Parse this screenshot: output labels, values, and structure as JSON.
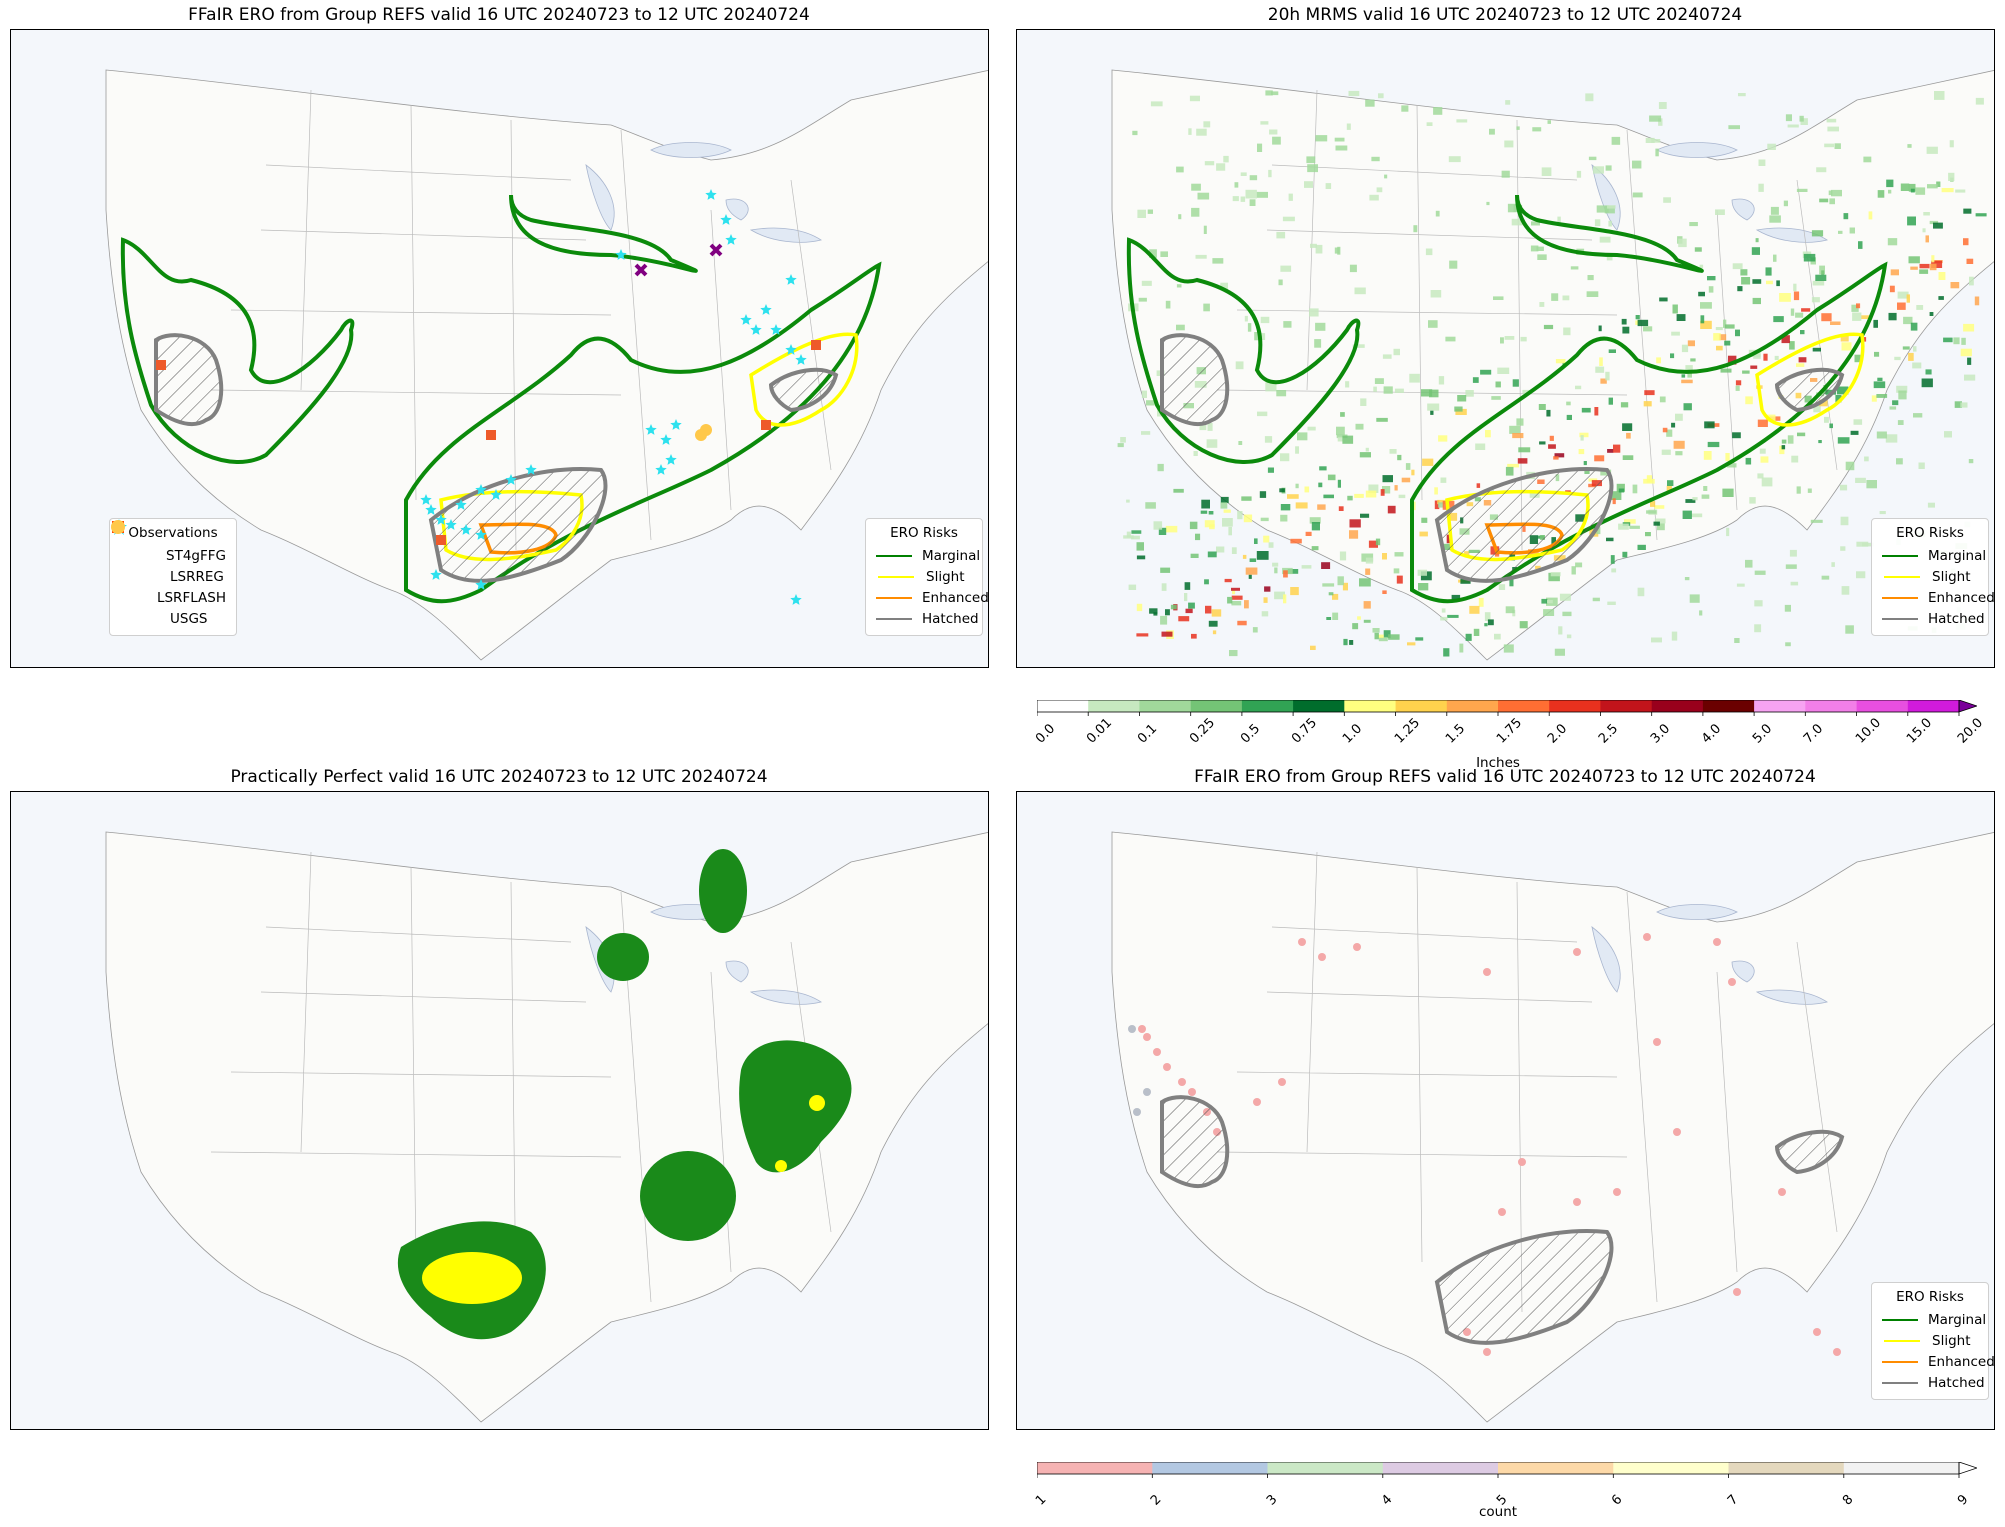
{
  "panels": [
    {
      "id": "p1",
      "title": "FFaIR ERO from Group REFS valid 16 UTC 20240723 to 12 UTC 20240724"
    },
    {
      "id": "p2",
      "title": "20h MRMS valid 16 UTC 20240723 to 12 UTC 20240724"
    },
    {
      "id": "p3",
      "title": "Practically Perfect valid 16 UTC 20240723 to 12 UTC 20240724"
    },
    {
      "id": "p4",
      "title": "FFaIR ERO from Group REFS valid 16 UTC 20240723 to 12 UTC 20240724"
    }
  ],
  "ero_legend": {
    "title": "ERO Risks",
    "items": [
      {
        "label": "Marginal",
        "color": "#008000"
      },
      {
        "label": "Slight",
        "color": "#ffff00"
      },
      {
        "label": "Enhanced",
        "color": "#ff8c00"
      },
      {
        "label": "Hatched",
        "color": "#808080"
      }
    ]
  },
  "obs_legend": {
    "title": "Observations",
    "items": [
      {
        "label": "ST4gFFG",
        "color": "#22e0ee",
        "icon": "star-icon"
      },
      {
        "label": "LSRREG",
        "color": "#800080",
        "icon": "x-icon"
      },
      {
        "label": "LSRFLASH",
        "color": "#ff4500",
        "icon": "square-icon"
      },
      {
        "label": "USGS",
        "color": "#ffc84a",
        "icon": "circle-icon"
      }
    ]
  },
  "precip_colorbar": {
    "unit": "Inches",
    "ticks": [
      "0.0",
      "0.01",
      "0.1",
      "0.25",
      "0.5",
      "0.75",
      "1.0",
      "1.25",
      "1.5",
      "1.75",
      "2.0",
      "2.5",
      "3.0",
      "4.0",
      "5.0",
      "7.0",
      "10.0",
      "15.0",
      "20.0"
    ],
    "colors": [
      "#ffffff",
      "#c7e9c0",
      "#a1d99b",
      "#74c476",
      "#31a354",
      "#006d2c",
      "#ffff80",
      "#ffd24d",
      "#ffa64d",
      "#ff6e33",
      "#e8311e",
      "#c2141b",
      "#99001c",
      "#6b0000",
      "#f7a3f2",
      "#f27fe8",
      "#e84fe0",
      "#d11bdc",
      "#9e1ab8"
    ]
  },
  "count_colorbar": {
    "unit": "count",
    "ticks": [
      "1",
      "2",
      "3",
      "4",
      "5",
      "6",
      "7",
      "8",
      "9"
    ],
    "colors": [
      "#f6b3b3",
      "#b3c8e2",
      "#cbe8c6",
      "#ddcbe3",
      "#fdd9a8",
      "#ffffcc",
      "#e4d8bd",
      "#f2f2f2"
    ]
  }
}
